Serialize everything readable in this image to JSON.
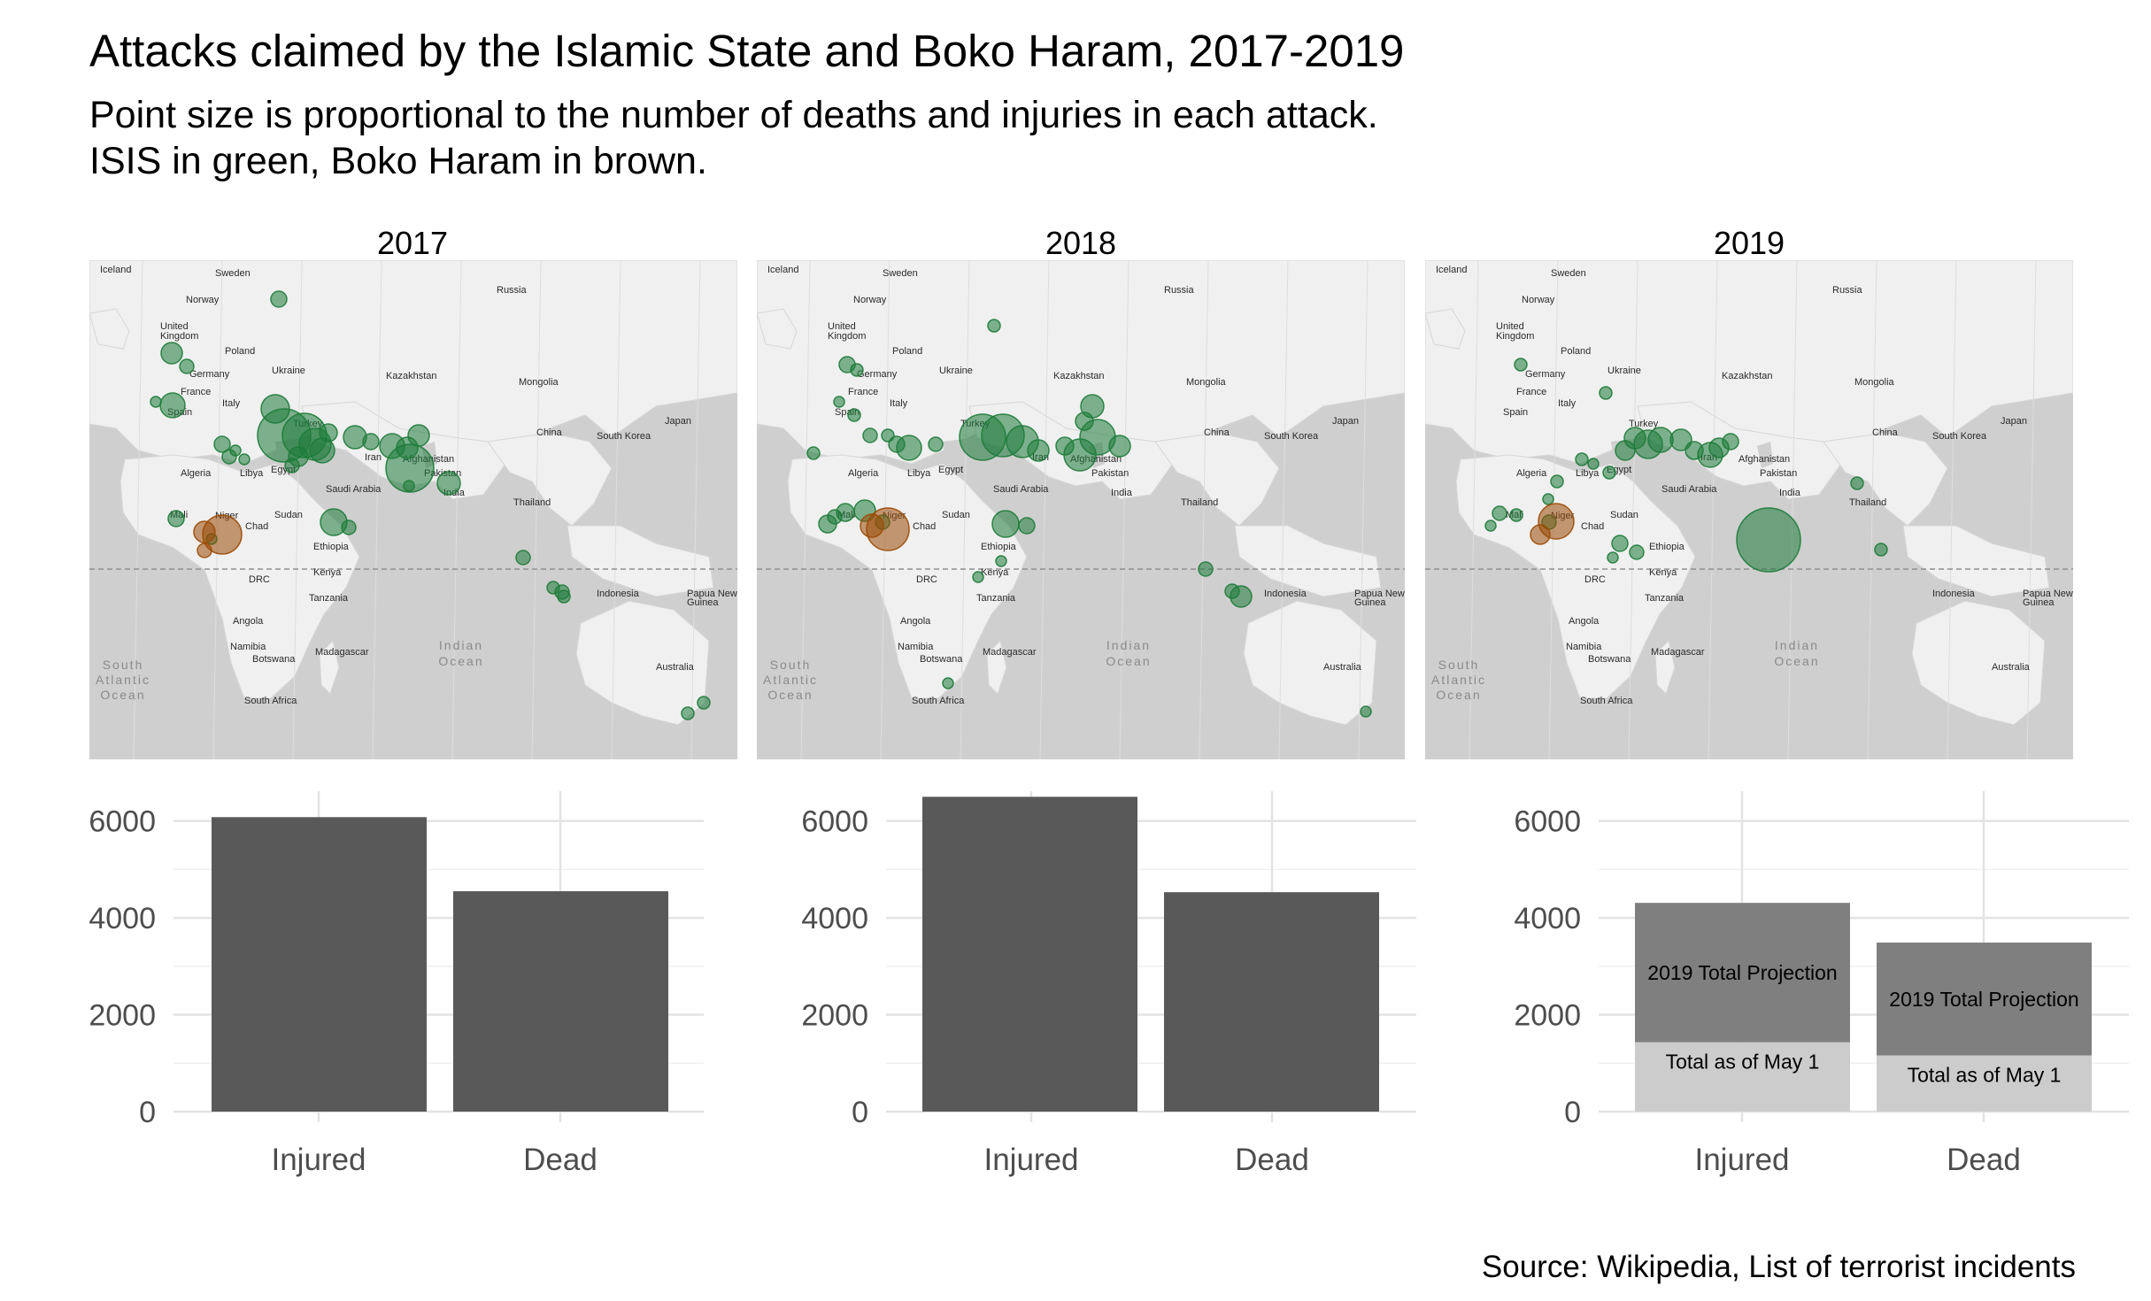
{
  "title": "Attacks claimed by the Islamic State and Boko Haram, 2017-2019",
  "subtitle_lines": [
    "Point size is proportional to the number of deaths and injuries in each attack.",
    "ISIS in green, Boko Haram in brown."
  ],
  "source": "Source: Wikipedia, List of terrorist incidents",
  "colors": {
    "isis": "#1e7b3a",
    "boko_haram": "#9b4a05",
    "bar_dark": "#595959",
    "projection": "#7f7f7f",
    "as_of_may": "#cccccc",
    "map_land": "#f0f0f0",
    "map_water": "#cfcfcf"
  },
  "map_labels": [
    "Iceland",
    "Sweden",
    "Norway",
    "Russia",
    "United Kingdom",
    "Poland",
    "Germany",
    "Ukraine",
    "Kazakhstan",
    "Mongolia",
    "France",
    "Italy",
    "Spain",
    "Turkey",
    "Japan",
    "China",
    "South Korea",
    "Algeria",
    "Libya",
    "Egypt",
    "Iran",
    "Afghanistan",
    "Pakistan",
    "Saudi Arabia",
    "India",
    "Thailand",
    "Mali",
    "Niger",
    "Chad",
    "Sudan",
    "Ethiopia",
    "DRC",
    "Kenya",
    "Tanzania",
    "Indonesia",
    "Papua New Guinea",
    "Angola",
    "Namibia",
    "Botswana",
    "Madagascar",
    "South Africa",
    "Australia",
    "Indian Ocean",
    "South Atlantic Ocean"
  ],
  "chart_data": [
    {
      "type": "bar",
      "facet": "2017",
      "categories": [
        "Injured",
        "Dead"
      ],
      "values": [
        6080,
        4550
      ],
      "ylim": [
        0,
        6900
      ],
      "yticks": [
        0,
        2000,
        4000,
        6000
      ]
    },
    {
      "type": "bar",
      "facet": "2018",
      "categories": [
        "Injured",
        "Dead"
      ],
      "values": [
        6500,
        4530
      ],
      "ylim": [
        0,
        6900
      ],
      "yticks": [
        0,
        2000,
        4000,
        6000
      ]
    },
    {
      "type": "bar",
      "facet": "2019",
      "stacked": true,
      "categories": [
        "Injured",
        "Dead"
      ],
      "series": [
        {
          "name": "Total as of May 1",
          "values": [
            1430,
            1160
          ]
        },
        {
          "name": "2019 Total Projection",
          "values": [
            2880,
            2330
          ]
        }
      ],
      "ylim": [
        0,
        6900
      ],
      "yticks": [
        0,
        2000,
        4000,
        6000
      ]
    }
  ]
}
